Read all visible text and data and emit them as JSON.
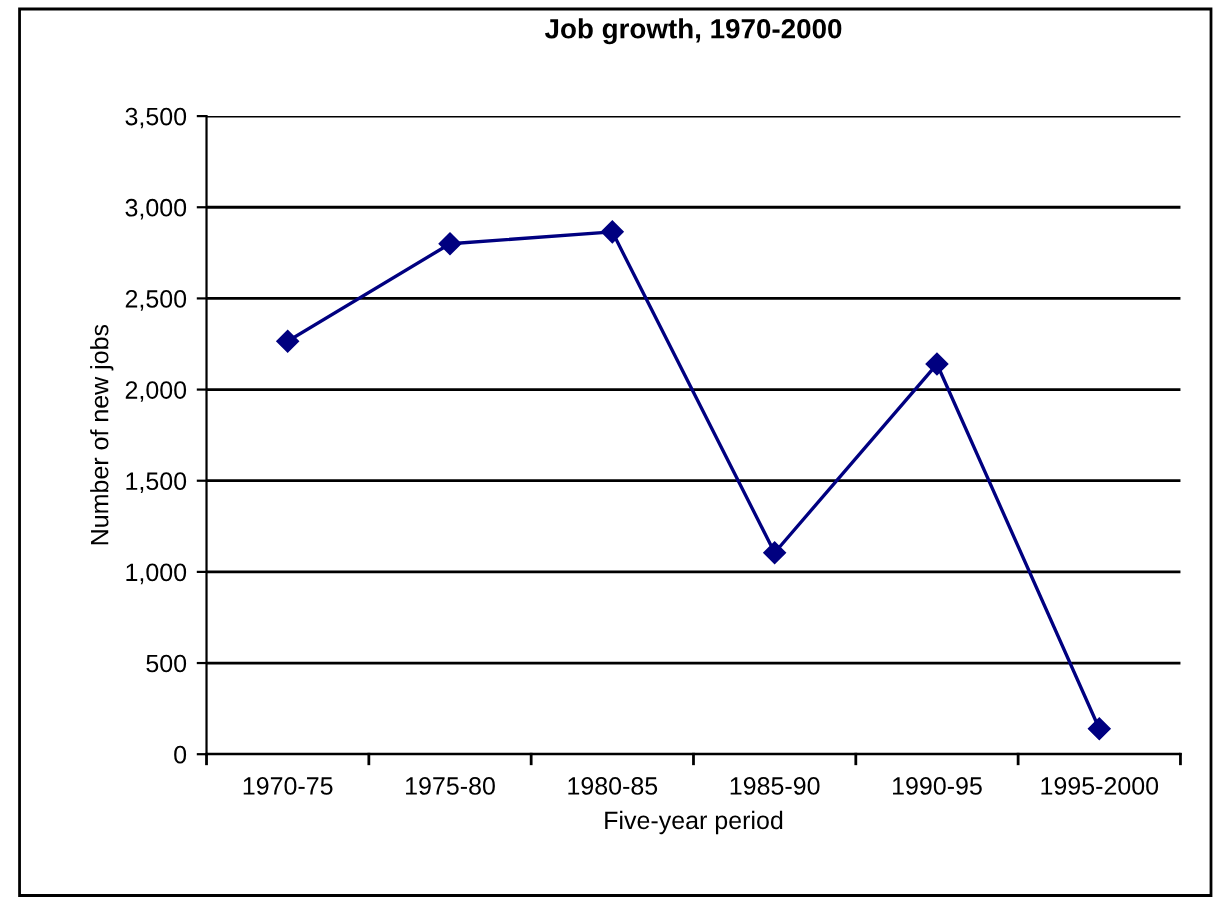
{
  "chart_data": {
    "type": "line",
    "title": "Job growth, 1970-2000",
    "xlabel": "Five-year period",
    "ylabel": "Number of new jobs",
    "categories": [
      "1970-75",
      "1975-80",
      "1980-85",
      "1985-90",
      "1990-95",
      "1995-2000"
    ],
    "series": [
      {
        "color": "#000080",
        "values": [
          2265,
          2800,
          2865,
          1105,
          2140,
          140
        ]
      }
    ],
    "ylim": [
      0,
      3500
    ],
    "yticks": [
      {
        "value": 0,
        "label": "0"
      },
      {
        "value": 500,
        "label": "500"
      },
      {
        "value": 1000,
        "label": "1,000"
      },
      {
        "value": 1500,
        "label": "1,500"
      },
      {
        "value": 2000,
        "label": "2,000"
      },
      {
        "value": 2500,
        "label": "2,500"
      },
      {
        "value": 3000,
        "label": "3,000"
      },
      {
        "value": 3500,
        "label": "3,500"
      }
    ],
    "grid": "y",
    "marker": "diamond",
    "line_style": "solid"
  }
}
